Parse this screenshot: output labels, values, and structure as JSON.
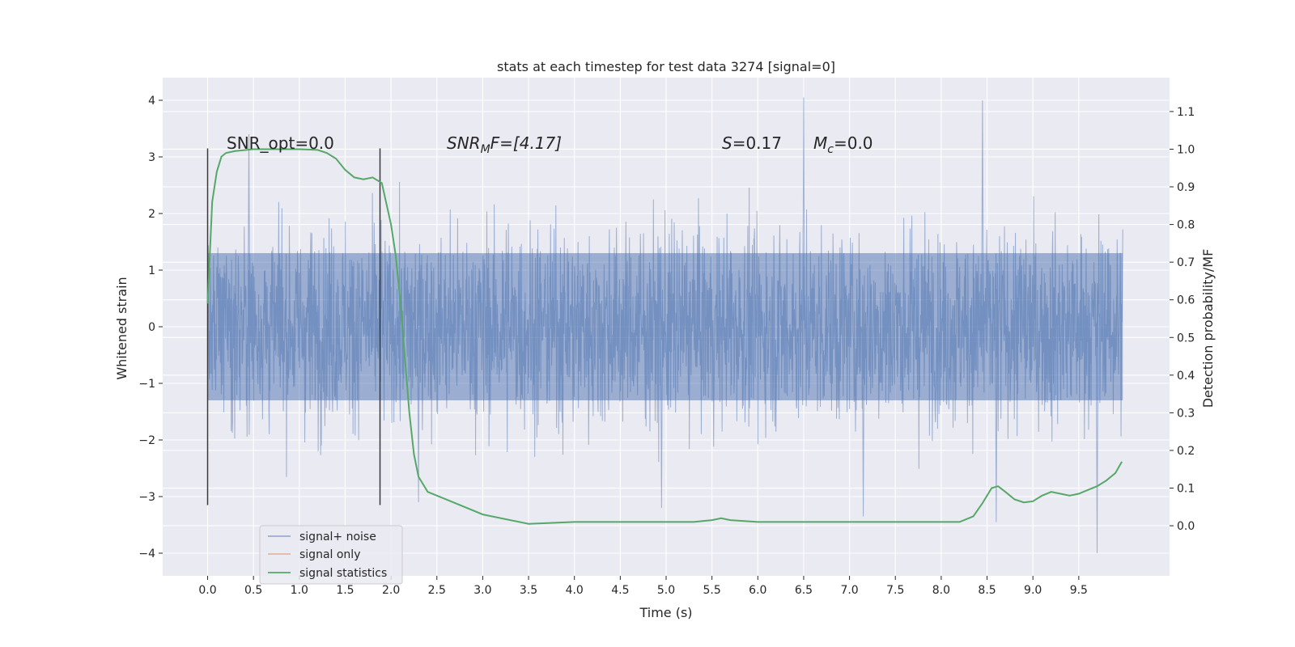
{
  "chart_data": {
    "type": "line",
    "title": "stats at each timestep for test data 3274 [signal=0]",
    "xlabel": "Time (s)",
    "ylabel": "Whitened strain",
    "y2label": "Detection probability/MF",
    "xlim": [
      -0.49,
      10.49
    ],
    "ylim": [
      -4.4,
      4.4
    ],
    "y2lim": [
      -0.133,
      1.19
    ],
    "xticks": [
      0.0,
      0.5,
      1.0,
      1.5,
      2.0,
      2.5,
      3.0,
      3.5,
      4.0,
      4.5,
      5.0,
      5.5,
      6.0,
      6.5,
      7.0,
      7.5,
      8.0,
      8.5,
      9.0,
      9.5
    ],
    "xtick_labels": [
      "0.0",
      "0.5",
      "1.0",
      "1.5",
      "2.0",
      "2.5",
      "3.0",
      "3.5",
      "4.0",
      "4.5",
      "5.0",
      "5.5",
      "6.0",
      "6.5",
      "7.0",
      "7.5",
      "8.0",
      "8.5",
      "9.0",
      "9.5"
    ],
    "yticks": [
      -4,
      -3,
      -2,
      -1,
      0,
      1,
      2,
      3,
      4
    ],
    "ytick_labels": [
      "−4",
      "−3",
      "−2",
      "−1",
      "0",
      "1",
      "2",
      "3",
      "4"
    ],
    "y2ticks": [
      0.0,
      0.1,
      0.2,
      0.3,
      0.4,
      0.5,
      0.6,
      0.7,
      0.8,
      0.9,
      1.0,
      1.1
    ],
    "y2tick_labels": [
      "0.0",
      "0.1",
      "0.2",
      "0.3",
      "0.4",
      "0.5",
      "0.6",
      "0.7",
      "0.8",
      "0.9",
      "1.0",
      "1.1"
    ],
    "grid": true,
    "legend_position": "lower-left",
    "colors": {
      "background": "#eaeaf2",
      "grid": "#ffffff",
      "noise": "#4c72b0",
      "signal_only": "#dd8452",
      "statistics": "#55a868",
      "window_lines": "#3a3a3a"
    },
    "annotations": {
      "snr_opt": "SNR_opt=0.0",
      "snr_mf_prefix": "SNR",
      "snr_mf_sub": "M",
      "snr_mf_suffix": "F=[4.17]",
      "s_label": "S",
      "s_value": "=0.17",
      "mc_label": "M",
      "mc_sub": "c",
      "mc_value": "=0.0"
    },
    "window_lines_x": [
      0.0,
      1.88
    ],
    "window_lines_y": [
      -3.15,
      3.15
    ],
    "series": [
      {
        "name": "signal+ noise",
        "time_range": [
          0.0,
          9.98
        ],
        "core_band": [
          -1.3,
          1.3
        ],
        "typical_envelope": [
          -2.3,
          2.4
        ],
        "approx_extremes": [
          {
            "x": 0.45,
            "y": 3.4
          },
          {
            "x": 2.3,
            "y": -3.1
          },
          {
            "x": 4.95,
            "y": -3.2
          },
          {
            "x": 6.5,
            "y": 4.05
          },
          {
            "x": 7.15,
            "y": -3.35
          },
          {
            "x": 8.45,
            "y": 4.0
          },
          {
            "x": 8.6,
            "y": -3.45
          },
          {
            "x": 9.7,
            "y": -4.0
          }
        ]
      },
      {
        "name": "signal only",
        "values": []
      },
      {
        "name": "signal statistics",
        "x": [
          0.0,
          0.05,
          0.1,
          0.15,
          0.2,
          0.3,
          0.5,
          0.8,
          1.0,
          1.2,
          1.3,
          1.4,
          1.5,
          1.6,
          1.7,
          1.8,
          1.9,
          2.0,
          2.05,
          2.1,
          2.15,
          2.2,
          2.25,
          2.3,
          2.4,
          2.6,
          3.0,
          3.5,
          4.0,
          4.5,
          5.0,
          5.3,
          5.5,
          5.6,
          5.7,
          6.0,
          6.5,
          7.0,
          7.5,
          8.0,
          8.2,
          8.35,
          8.45,
          8.55,
          8.62,
          8.7,
          8.8,
          8.9,
          9.0,
          9.1,
          9.2,
          9.3,
          9.4,
          9.5,
          9.6,
          9.7,
          9.8,
          9.9,
          9.97
        ],
        "values": [
          0.59,
          0.86,
          0.94,
          0.98,
          0.99,
          0.995,
          1.0,
          1.0,
          1.0,
          0.998,
          0.99,
          0.975,
          0.945,
          0.925,
          0.92,
          0.925,
          0.91,
          0.8,
          0.72,
          0.6,
          0.45,
          0.3,
          0.19,
          0.13,
          0.09,
          0.07,
          0.03,
          0.005,
          0.01,
          0.01,
          0.01,
          0.01,
          0.015,
          0.02,
          0.015,
          0.01,
          0.01,
          0.01,
          0.01,
          0.01,
          0.01,
          0.025,
          0.06,
          0.1,
          0.105,
          0.09,
          0.07,
          0.062,
          0.065,
          0.08,
          0.09,
          0.085,
          0.08,
          0.085,
          0.095,
          0.105,
          0.12,
          0.14,
          0.17
        ]
      }
    ]
  }
}
